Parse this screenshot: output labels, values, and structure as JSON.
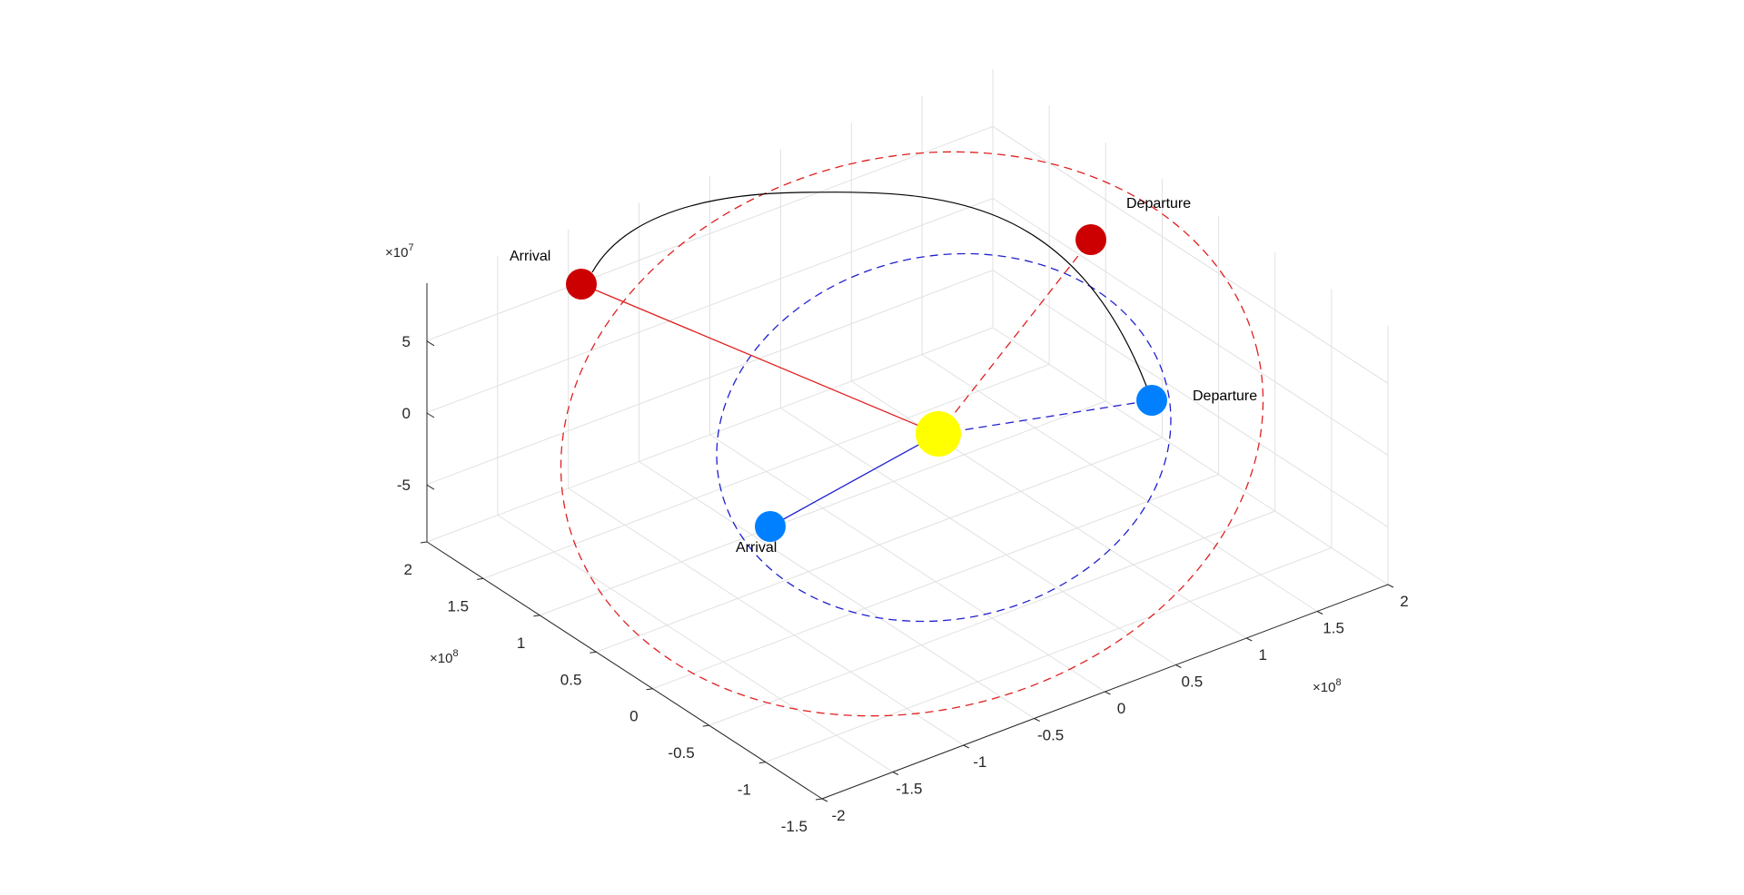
{
  "chart_data": {
    "type": "scatter",
    "view": "3d",
    "grid": true,
    "axes": {
      "x": {
        "ticks": [
          -2,
          -1.5,
          -1,
          -0.5,
          0,
          0.5,
          1,
          1.5,
          2
        ],
        "labels": [
          "-2",
          "-1.5",
          "-1",
          "-0.5",
          "0",
          "0.5",
          "1",
          "1.5",
          "2"
        ],
        "exponent_base": "×10",
        "exponent": "8"
      },
      "y": {
        "ticks": [
          -1.5,
          -1,
          -0.5,
          0,
          0.5,
          1,
          1.5,
          2
        ],
        "labels": [
          "-1.5",
          "-1",
          "-0.5",
          "0",
          "0.5",
          "1",
          "1.5",
          "2"
        ],
        "exponent_base": "×10",
        "exponent": "8"
      },
      "z": {
        "ticks": [
          -5,
          0,
          5
        ],
        "labels": [
          "-5",
          "0",
          "5"
        ],
        "exponent_base": "×10",
        "exponent": "7"
      }
    },
    "points": [
      {
        "label": "Departure",
        "color": "#cc0000",
        "x": 1.49,
        "y": 1.05,
        "z": 4.0
      },
      {
        "label": "Arrival",
        "color": "#cc0000",
        "x": -1.55,
        "y": 1.36,
        "z": -0.4
      },
      {
        "label": "Departure",
        "color": "#0080ff",
        "x": 1.18,
        "y": 0.18,
        "z": -3.5
      },
      {
        "label": "Arrival",
        "color": "#0080ff",
        "x": -0.45,
        "y": -0.93,
        "z": 2.7
      },
      {
        "label": "",
        "color": "#ffff00",
        "x": 0,
        "y": 0,
        "z": 0
      }
    ],
    "series": [
      {
        "style": "dashed",
        "color": "#e02020",
        "description": "outer orbit"
      },
      {
        "style": "dashed",
        "color": "#2020d0",
        "description": "inner orbit"
      },
      {
        "style": "solid",
        "color": "#000000",
        "description": "transfer arc"
      }
    ]
  }
}
